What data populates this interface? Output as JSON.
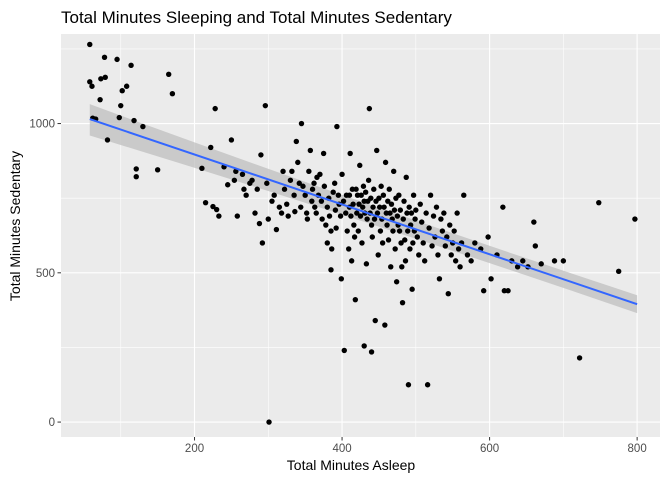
{
  "chart_data": {
    "type": "scatter",
    "title": "Total Minutes Sleeping and Total Minutes Sedentary",
    "xlabel": "Total Minutes Asleep",
    "ylabel": "Total Minutes Sedentary",
    "xlim": [
      19,
      831
    ],
    "ylim": [
      -50,
      1300
    ],
    "x_ticks": [
      200,
      400,
      600,
      800
    ],
    "y_ticks": [
      0,
      500,
      1000
    ],
    "x_tick_labels": [
      "200",
      "400",
      "600",
      "800"
    ],
    "y_tick_labels": [
      "0",
      "500",
      "1000"
    ],
    "grid": true,
    "legend": "none",
    "colors": {
      "panel": "#ebebeb",
      "grid": "#ffffff",
      "points": "#000000",
      "trend_line": "#3366ff",
      "confidence_band": "#bdbdbd"
    },
    "trend_line": {
      "method": "linear",
      "x": [
        58,
        800
      ],
      "y": [
        1015,
        395
      ],
      "band_lower": [
        960,
        365
      ],
      "band_upper": [
        1065,
        425
      ]
    },
    "points": [
      [
        58,
        1265
      ],
      [
        58,
        1140
      ],
      [
        61,
        1125
      ],
      [
        62,
        1018
      ],
      [
        66,
        1015
      ],
      [
        72,
        1080
      ],
      [
        73,
        1150
      ],
      [
        78,
        1222
      ],
      [
        79,
        1155
      ],
      [
        82,
        945
      ],
      [
        95,
        1215
      ],
      [
        98,
        1020
      ],
      [
        100,
        1060
      ],
      [
        102,
        1110
      ],
      [
        108,
        1125
      ],
      [
        114,
        1195
      ],
      [
        118,
        1010
      ],
      [
        121,
        848
      ],
      [
        121,
        822
      ],
      [
        130,
        990
      ],
      [
        150,
        845
      ],
      [
        165,
        1165
      ],
      [
        170,
        1100
      ],
      [
        210,
        850
      ],
      [
        215,
        735
      ],
      [
        222,
        920
      ],
      [
        225,
        722
      ],
      [
        228,
        1050
      ],
      [
        230,
        712
      ],
      [
        233,
        690
      ],
      [
        240,
        855
      ],
      [
        245,
        795
      ],
      [
        250,
        945
      ],
      [
        254,
        810
      ],
      [
        256,
        840
      ],
      [
        258,
        690
      ],
      [
        265,
        830
      ],
      [
        267,
        780
      ],
      [
        270,
        760
      ],
      [
        275,
        800
      ],
      [
        278,
        810
      ],
      [
        282,
        700
      ],
      [
        285,
        780
      ],
      [
        288,
        665
      ],
      [
        290,
        895
      ],
      [
        292,
        600
      ],
      [
        296,
        1060
      ],
      [
        298,
        800
      ],
      [
        300,
        680
      ],
      [
        301,
        0
      ],
      [
        305,
        740
      ],
      [
        308,
        760
      ],
      [
        311,
        645
      ],
      [
        315,
        720
      ],
      [
        318,
        700
      ],
      [
        320,
        840
      ],
      [
        322,
        780
      ],
      [
        325,
        730
      ],
      [
        327,
        690
      ],
      [
        330,
        810
      ],
      [
        332,
        840
      ],
      [
        335,
        760
      ],
      [
        336,
        705
      ],
      [
        338,
        940
      ],
      [
        340,
        870
      ],
      [
        342,
        800
      ],
      [
        344,
        720
      ],
      [
        345,
        1000
      ],
      [
        347,
        790
      ],
      [
        350,
        760
      ],
      [
        352,
        700
      ],
      [
        353,
        680
      ],
      [
        355,
        840
      ],
      [
        357,
        910
      ],
      [
        359,
        740
      ],
      [
        360,
        780
      ],
      [
        362,
        800
      ],
      [
        363,
        720
      ],
      [
        365,
        700
      ],
      [
        366,
        820
      ],
      [
        368,
        760
      ],
      [
        370,
        830
      ],
      [
        372,
        740
      ],
      [
        373,
        680
      ],
      [
        375,
        900
      ],
      [
        376,
        790
      ],
      [
        378,
        660
      ],
      [
        380,
        720
      ],
      [
        380,
        600
      ],
      [
        382,
        750
      ],
      [
        383,
        690
      ],
      [
        385,
        640
      ],
      [
        385,
        510
      ],
      [
        386,
        580
      ],
      [
        388,
        770
      ],
      [
        390,
        800
      ],
      [
        391,
        710
      ],
      [
        392,
        650
      ],
      [
        393,
        990
      ],
      [
        395,
        760
      ],
      [
        396,
        730
      ],
      [
        398,
        690
      ],
      [
        399,
        480
      ],
      [
        400,
        830
      ],
      [
        402,
        740
      ],
      [
        403,
        240
      ],
      [
        405,
        700
      ],
      [
        406,
        760
      ],
      [
        407,
        640
      ],
      [
        409,
        580
      ],
      [
        410,
        760
      ],
      [
        410,
        720
      ],
      [
        411,
        900
      ],
      [
        412,
        690
      ],
      [
        413,
        540
      ],
      [
        414,
        780
      ],
      [
        415,
        730
      ],
      [
        416,
        660
      ],
      [
        417,
        620
      ],
      [
        418,
        410
      ],
      [
        419,
        780
      ],
      [
        420,
        700
      ],
      [
        421,
        760
      ],
      [
        422,
        640
      ],
      [
        423,
        730
      ],
      [
        424,
        860
      ],
      [
        425,
        690
      ],
      [
        426,
        760
      ],
      [
        427,
        600
      ],
      [
        428,
        720
      ],
      [
        429,
        790
      ],
      [
        430,
        740
      ],
      [
        430,
        255
      ],
      [
        431,
        700
      ],
      [
        432,
        770
      ],
      [
        433,
        530
      ],
      [
        434,
        680
      ],
      [
        435,
        740
      ],
      [
        436,
        810
      ],
      [
        437,
        1050
      ],
      [
        438,
        700
      ],
      [
        439,
        750
      ],
      [
        440,
        660
      ],
      [
        440,
        235
      ],
      [
        441,
        620
      ],
      [
        442,
        720
      ],
      [
        443,
        780
      ],
      [
        444,
        680
      ],
      [
        445,
        340
      ],
      [
        446,
        740
      ],
      [
        447,
        910
      ],
      [
        448,
        700
      ],
      [
        449,
        560
      ],
      [
        450,
        750
      ],
      [
        451,
        720
      ],
      [
        452,
        640
      ],
      [
        453,
        790
      ],
      [
        454,
        680
      ],
      [
        455,
        600
      ],
      [
        456,
        760
      ],
      [
        457,
        720
      ],
      [
        458,
        325
      ],
      [
        459,
        870
      ],
      [
        460,
        700
      ],
      [
        461,
        660
      ],
      [
        462,
        740
      ],
      [
        463,
        610
      ],
      [
        464,
        780
      ],
      [
        465,
        700
      ],
      [
        466,
        520
      ],
      [
        467,
        730
      ],
      [
        468,
        680
      ],
      [
        469,
        640
      ],
      [
        470,
        840
      ],
      [
        471,
        710
      ],
      [
        472,
        580
      ],
      [
        473,
        750
      ],
      [
        474,
        470
      ],
      [
        475,
        690
      ],
      [
        476,
        660
      ],
      [
        477,
        760
      ],
      [
        478,
        640
      ],
      [
        479,
        710
      ],
      [
        480,
        600
      ],
      [
        481,
        520
      ],
      [
        482,
        400
      ],
      [
        483,
        680
      ],
      [
        484,
        740
      ],
      [
        485,
        610
      ],
      [
        486,
        540
      ],
      [
        487,
        820
      ],
      [
        488,
        700
      ],
      [
        489,
        640
      ],
      [
        490,
        125
      ],
      [
        491,
        720
      ],
      [
        492,
        580
      ],
      [
        493,
        660
      ],
      [
        494,
        700
      ],
      [
        495,
        445
      ],
      [
        496,
        600
      ],
      [
        497,
        760
      ],
      [
        498,
        640
      ],
      [
        499,
        680
      ],
      [
        500,
        710
      ],
      [
        502,
        620
      ],
      [
        504,
        560
      ],
      [
        506,
        730
      ],
      [
        508,
        670
      ],
      [
        510,
        600
      ],
      [
        512,
        540
      ],
      [
        514,
        700
      ],
      [
        516,
        125
      ],
      [
        518,
        650
      ],
      [
        520,
        760
      ],
      [
        522,
        590
      ],
      [
        524,
        690
      ],
      [
        526,
        620
      ],
      [
        528,
        720
      ],
      [
        530,
        560
      ],
      [
        532,
        480
      ],
      [
        534,
        680
      ],
      [
        536,
        640
      ],
      [
        538,
        700
      ],
      [
        540,
        590
      ],
      [
        542,
        620
      ],
      [
        544,
        430
      ],
      [
        546,
        660
      ],
      [
        548,
        560
      ],
      [
        550,
        600
      ],
      [
        552,
        640
      ],
      [
        554,
        540
      ],
      [
        556,
        700
      ],
      [
        558,
        580
      ],
      [
        560,
        520
      ],
      [
        562,
        600
      ],
      [
        565,
        760
      ],
      [
        570,
        560
      ],
      [
        575,
        540
      ],
      [
        580,
        600
      ],
      [
        588,
        580
      ],
      [
        592,
        440
      ],
      [
        598,
        620
      ],
      [
        602,
        480
      ],
      [
        610,
        560
      ],
      [
        618,
        720
      ],
      [
        620,
        440
      ],
      [
        625,
        440
      ],
      [
        630,
        540
      ],
      [
        638,
        520
      ],
      [
        645,
        540
      ],
      [
        652,
        520
      ],
      [
        660,
        670
      ],
      [
        662,
        590
      ],
      [
        670,
        530
      ],
      [
        688,
        540
      ],
      [
        700,
        540
      ],
      [
        722,
        215
      ],
      [
        748,
        735
      ],
      [
        775,
        505
      ],
      [
        797,
        680
      ]
    ]
  }
}
